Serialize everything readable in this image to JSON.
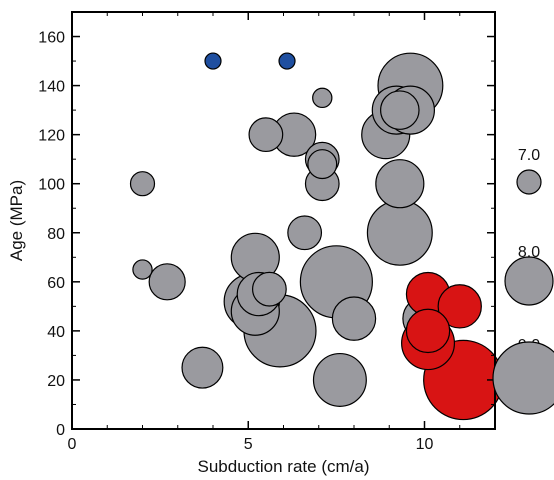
{
  "chart_data": {
    "type": "scatter",
    "title": "",
    "xlabel": "Subduction rate (cm/a)",
    "ylabel": "Age (MPa)",
    "xlim": [
      0,
      12
    ],
    "ylim": [
      0,
      170
    ],
    "x_ticks": [
      0,
      5,
      10
    ],
    "y_ticks": [
      0,
      20,
      40,
      60,
      80,
      100,
      120,
      140,
      160
    ],
    "grid": false,
    "legend_position": "right",
    "size_legend": [
      {
        "label": "7.0",
        "magnitude": 7.0
      },
      {
        "label": "8.0",
        "magnitude": 8.0
      },
      {
        "label": "9.0",
        "magnitude": 9.0
      }
    ],
    "colors": {
      "gray": "#9a9a9f",
      "blue": "#1f4fa0",
      "red": "#d81414"
    },
    "series": [
      {
        "color_key": "gray",
        "points": [
          {
            "x": 2.0,
            "y": 100,
            "m": 7.0
          },
          {
            "x": 2.0,
            "y": 65,
            "m": 6.8
          },
          {
            "x": 2.7,
            "y": 60,
            "m": 7.5
          },
          {
            "x": 3.7,
            "y": 25,
            "m": 7.7
          },
          {
            "x": 5.2,
            "y": 70,
            "m": 8.0
          },
          {
            "x": 5.1,
            "y": 52,
            "m": 8.3
          },
          {
            "x": 5.2,
            "y": 48,
            "m": 8.0
          },
          {
            "x": 5.3,
            "y": 55,
            "m": 7.8
          },
          {
            "x": 5.6,
            "y": 57,
            "m": 7.4
          },
          {
            "x": 5.9,
            "y": 40,
            "m": 9.0
          },
          {
            "x": 5.5,
            "y": 120,
            "m": 7.4
          },
          {
            "x": 6.3,
            "y": 120,
            "m": 7.8
          },
          {
            "x": 6.6,
            "y": 80,
            "m": 7.4
          },
          {
            "x": 7.1,
            "y": 135,
            "m": 6.8
          },
          {
            "x": 7.1,
            "y": 110,
            "m": 7.4
          },
          {
            "x": 7.1,
            "y": 108,
            "m": 7.2
          },
          {
            "x": 7.1,
            "y": 100,
            "m": 7.4
          },
          {
            "x": 7.5,
            "y": 60,
            "m": 9.0
          },
          {
            "x": 7.6,
            "y": 20,
            "m": 8.2
          },
          {
            "x": 8.0,
            "y": 45,
            "m": 7.8
          },
          {
            "x": 8.9,
            "y": 120,
            "m": 8.0
          },
          {
            "x": 9.2,
            "y": 130,
            "m": 8.0
          },
          {
            "x": 9.3,
            "y": 130,
            "m": 7.6
          },
          {
            "x": 9.3,
            "y": 100,
            "m": 8.0
          },
          {
            "x": 9.3,
            "y": 80,
            "m": 8.7
          },
          {
            "x": 9.6,
            "y": 140,
            "m": 8.7
          },
          {
            "x": 9.6,
            "y": 130,
            "m": 8.0
          },
          {
            "x": 10.0,
            "y": 45,
            "m": 7.8
          }
        ]
      },
      {
        "color_key": "blue",
        "points": [
          {
            "x": 4.0,
            "y": 150,
            "m": 6.5
          },
          {
            "x": 6.1,
            "y": 150,
            "m": 6.5
          }
        ]
      },
      {
        "color_key": "red",
        "points": [
          {
            "x": 10.1,
            "y": 55,
            "m": 7.8
          },
          {
            "x": 11.0,
            "y": 50,
            "m": 7.8
          },
          {
            "x": 10.1,
            "y": 35,
            "m": 8.2
          },
          {
            "x": 10.1,
            "y": 40,
            "m": 7.8
          },
          {
            "x": 11.1,
            "y": 20,
            "m": 9.3
          }
        ]
      }
    ]
  }
}
